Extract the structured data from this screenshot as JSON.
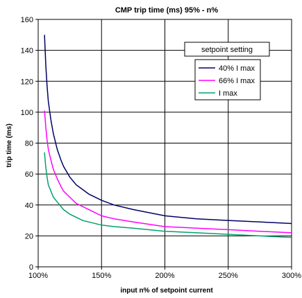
{
  "chart_data": {
    "type": "line",
    "title": "CMP trip time (ms) 95% - n%",
    "xlabel": "input n% of setpoint current",
    "ylabel": "trip time (ms)",
    "xlim": [
      100,
      300
    ],
    "ylim": [
      0,
      160
    ],
    "x_ticks": [
      100,
      150,
      200,
      250,
      300
    ],
    "x_tick_labels": [
      "100%",
      "150%",
      "200%",
      "250%",
      "300%"
    ],
    "y_ticks": [
      0,
      20,
      40,
      60,
      80,
      100,
      120,
      140,
      160
    ],
    "y_tick_labels": [
      "0",
      "20",
      "40",
      "60",
      "80",
      "100",
      "120",
      "140",
      "160"
    ],
    "grid": true,
    "legend": {
      "title": "setpoint setting",
      "placement": "top-right"
    },
    "series": [
      {
        "name": "40% I max",
        "color": "#000066",
        "points": [
          [
            105,
            150
          ],
          [
            106,
            130
          ],
          [
            107,
            117
          ],
          [
            108,
            107
          ],
          [
            110,
            95
          ],
          [
            112,
            86
          ],
          [
            115,
            76
          ],
          [
            118,
            69
          ],
          [
            120,
            65
          ],
          [
            125,
            58
          ],
          [
            130,
            53
          ],
          [
            135,
            50
          ],
          [
            140,
            47
          ],
          [
            150,
            43
          ],
          [
            160,
            40
          ],
          [
            175,
            37
          ],
          [
            200,
            33
          ],
          [
            225,
            31
          ],
          [
            250,
            30
          ],
          [
            275,
            29
          ],
          [
            300,
            28
          ]
        ]
      },
      {
        "name": "66% I max",
        "color": "#ff00ff",
        "points": [
          [
            105,
            101
          ],
          [
            106,
            90
          ],
          [
            107,
            82
          ],
          [
            108,
            76
          ],
          [
            110,
            69
          ],
          [
            112,
            63
          ],
          [
            115,
            57
          ],
          [
            118,
            52
          ],
          [
            120,
            49
          ],
          [
            125,
            45
          ],
          [
            130,
            41
          ],
          [
            135,
            39
          ],
          [
            140,
            37
          ],
          [
            150,
            33
          ],
          [
            160,
            31
          ],
          [
            175,
            29
          ],
          [
            200,
            26
          ],
          [
            225,
            25
          ],
          [
            250,
            24
          ],
          [
            275,
            23
          ],
          [
            300,
            22
          ]
        ]
      },
      {
        "name": "I max",
        "color": "#00a070",
        "points": [
          [
            105,
            74
          ],
          [
            106,
            64
          ],
          [
            107,
            58
          ],
          [
            108,
            53
          ],
          [
            110,
            49
          ],
          [
            112,
            45
          ],
          [
            115,
            42
          ],
          [
            118,
            39
          ],
          [
            120,
            37
          ],
          [
            125,
            34
          ],
          [
            130,
            32
          ],
          [
            135,
            30
          ],
          [
            140,
            29
          ],
          [
            150,
            27
          ],
          [
            160,
            26
          ],
          [
            175,
            25
          ],
          [
            200,
            23
          ],
          [
            225,
            22
          ],
          [
            250,
            21
          ],
          [
            275,
            20
          ],
          [
            300,
            19
          ]
        ]
      }
    ]
  }
}
